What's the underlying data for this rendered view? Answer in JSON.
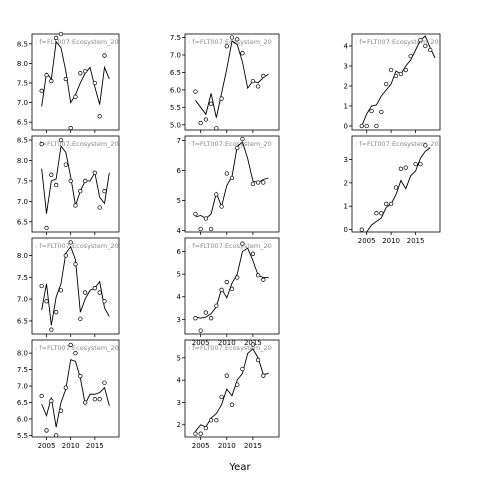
{
  "chart_data": {
    "type": "line",
    "xlabel": "Year",
    "ylabel": "",
    "xlim": [
      2002,
      2020
    ],
    "x_ticks": [
      2005,
      2010,
      2015
    ],
    "panel_label_text": ": f=FLT007:Ecosystem_20",
    "grid": false,
    "legend": "none",
    "panels": [
      {
        "id": "r1c1",
        "ylim": [
          6.3,
          8.75
        ],
        "y_ticks": [
          6.5,
          7.0,
          7.5,
          8.0,
          8.5
        ],
        "points": [
          [
            2004,
            7.3
          ],
          [
            2005,
            7.7
          ],
          [
            2006,
            7.55
          ],
          [
            2007,
            8.65
          ],
          [
            2008,
            8.75
          ],
          [
            2009,
            7.6
          ],
          [
            2010,
            6.35
          ],
          [
            2011,
            7.15
          ],
          [
            2012,
            7.75
          ],
          [
            2013,
            7.8
          ],
          [
            2015,
            7.5
          ],
          [
            2016,
            6.65
          ],
          [
            2017,
            8.2
          ]
        ],
        "fit": [
          [
            2004,
            6.9
          ],
          [
            2005,
            7.75
          ],
          [
            2006,
            7.6
          ],
          [
            2007,
            8.55
          ],
          [
            2008,
            8.4
          ],
          [
            2009,
            7.8
          ],
          [
            2010,
            7.0
          ],
          [
            2011,
            7.2
          ],
          [
            2012,
            7.5
          ],
          [
            2013,
            7.75
          ],
          [
            2014,
            7.9
          ],
          [
            2015,
            7.4
          ],
          [
            2016,
            6.95
          ],
          [
            2017,
            7.9
          ],
          [
            2018,
            7.6
          ]
        ]
      },
      {
        "id": "r1c2",
        "ylim": [
          4.85,
          7.6
        ],
        "y_ticks": [
          5.0,
          5.5,
          6.0,
          6.5,
          7.0,
          7.5
        ],
        "points": [
          [
            2004,
            5.95
          ],
          [
            2005,
            5.05
          ],
          [
            2006,
            5.15
          ],
          [
            2007,
            5.6
          ],
          [
            2008,
            4.9
          ],
          [
            2009,
            5.75
          ],
          [
            2010,
            7.25
          ],
          [
            2011,
            7.5
          ],
          [
            2012,
            7.45
          ],
          [
            2013,
            7.05
          ],
          [
            2015,
            6.25
          ],
          [
            2016,
            6.1
          ],
          [
            2017,
            6.4
          ]
        ],
        "fit": [
          [
            2004,
            5.7
          ],
          [
            2005,
            5.5
          ],
          [
            2006,
            5.3
          ],
          [
            2007,
            5.9
          ],
          [
            2008,
            5.2
          ],
          [
            2009,
            5.9
          ],
          [
            2010,
            6.6
          ],
          [
            2011,
            7.4
          ],
          [
            2012,
            7.3
          ],
          [
            2013,
            6.8
          ],
          [
            2014,
            6.05
          ],
          [
            2015,
            6.25
          ],
          [
            2016,
            6.2
          ],
          [
            2017,
            6.35
          ],
          [
            2018,
            6.45
          ]
        ]
      },
      {
        "id": "r1c3",
        "ylim": [
          -0.2,
          4.6
        ],
        "y_ticks": [
          0,
          1,
          2,
          3,
          4
        ],
        "points": [
          [
            2004,
            0.0
          ],
          [
            2005,
            0.0
          ],
          [
            2006,
            0.75
          ],
          [
            2007,
            0.0
          ],
          [
            2008,
            0.7
          ],
          [
            2009,
            2.1
          ],
          [
            2010,
            2.8
          ],
          [
            2011,
            2.5
          ],
          [
            2012,
            2.6
          ],
          [
            2013,
            2.8
          ],
          [
            2014,
            3.5
          ],
          [
            2016,
            4.3
          ],
          [
            2017,
            4.0
          ],
          [
            2018,
            3.8
          ]
        ],
        "fit": [
          [
            2004,
            0.0
          ],
          [
            2005,
            0.6
          ],
          [
            2006,
            1.0
          ],
          [
            2007,
            1.05
          ],
          [
            2008,
            1.5
          ],
          [
            2009,
            1.8
          ],
          [
            2010,
            2.1
          ],
          [
            2011,
            2.75
          ],
          [
            2012,
            2.6
          ],
          [
            2013,
            3.0
          ],
          [
            2014,
            3.3
          ],
          [
            2015,
            3.8
          ],
          [
            2016,
            4.3
          ],
          [
            2017,
            4.5
          ],
          [
            2018,
            3.9
          ],
          [
            2019,
            3.4
          ]
        ]
      },
      {
        "id": "r2c1",
        "ylim": [
          6.25,
          8.6
        ],
        "y_ticks": [
          6.5,
          7.0,
          7.5,
          8.0,
          8.5
        ],
        "points": [
          [
            2004,
            8.4
          ],
          [
            2005,
            6.35
          ],
          [
            2006,
            7.65
          ],
          [
            2007,
            7.4
          ],
          [
            2008,
            8.5
          ],
          [
            2009,
            7.9
          ],
          [
            2010,
            7.5
          ],
          [
            2011,
            6.9
          ],
          [
            2012,
            7.25
          ],
          [
            2013,
            7.5
          ],
          [
            2015,
            7.7
          ],
          [
            2016,
            6.85
          ],
          [
            2017,
            7.25
          ]
        ],
        "fit": [
          [
            2004,
            7.8
          ],
          [
            2005,
            6.7
          ],
          [
            2006,
            7.5
          ],
          [
            2007,
            7.55
          ],
          [
            2008,
            8.35
          ],
          [
            2009,
            8.2
          ],
          [
            2010,
            7.6
          ],
          [
            2011,
            6.9
          ],
          [
            2012,
            7.25
          ],
          [
            2013,
            7.5
          ],
          [
            2014,
            7.5
          ],
          [
            2015,
            7.7
          ],
          [
            2016,
            7.1
          ],
          [
            2017,
            6.95
          ],
          [
            2018,
            7.7
          ]
        ]
      },
      {
        "id": "r2c2",
        "ylim": [
          3.95,
          7.15
        ],
        "y_ticks": [
          4.0,
          5.0,
          6.0,
          7.0
        ],
        "points": [
          [
            2004,
            4.55
          ],
          [
            2005,
            4.05
          ],
          [
            2006,
            4.4
          ],
          [
            2007,
            4.05
          ],
          [
            2008,
            5.2
          ],
          [
            2009,
            4.8
          ],
          [
            2010,
            5.9
          ],
          [
            2011,
            5.75
          ],
          [
            2012,
            6.75
          ],
          [
            2013,
            7.05
          ],
          [
            2015,
            5.55
          ],
          [
            2016,
            5.6
          ],
          [
            2017,
            5.6
          ]
        ],
        "fit": [
          [
            2004,
            4.45
          ],
          [
            2005,
            4.5
          ],
          [
            2006,
            4.4
          ],
          [
            2007,
            4.55
          ],
          [
            2008,
            5.25
          ],
          [
            2009,
            4.8
          ],
          [
            2010,
            5.5
          ],
          [
            2011,
            5.8
          ],
          [
            2012,
            6.8
          ],
          [
            2013,
            6.95
          ],
          [
            2014,
            6.4
          ],
          [
            2015,
            5.65
          ],
          [
            2016,
            5.6
          ],
          [
            2017,
            5.7
          ],
          [
            2018,
            5.75
          ]
        ]
      },
      {
        "id": "r2c3",
        "ylim": [
          -0.1,
          4.0
        ],
        "y_ticks": [
          0,
          1,
          2,
          3
        ],
        "points": [
          [
            2004,
            0.0
          ],
          [
            2007,
            0.7
          ],
          [
            2008,
            0.7
          ],
          [
            2009,
            1.1
          ],
          [
            2010,
            1.1
          ],
          [
            2011,
            1.8
          ],
          [
            2012,
            2.6
          ],
          [
            2013,
            2.65
          ],
          [
            2015,
            2.8
          ],
          [
            2016,
            2.8
          ],
          [
            2017,
            3.6
          ]
        ],
        "fit": [
          [
            2004,
            -0.3
          ],
          [
            2005,
            -0.1
          ],
          [
            2006,
            0.2
          ],
          [
            2007,
            0.35
          ],
          [
            2008,
            0.5
          ],
          [
            2009,
            0.95
          ],
          [
            2010,
            1.1
          ],
          [
            2011,
            1.5
          ],
          [
            2012,
            2.1
          ],
          [
            2013,
            1.75
          ],
          [
            2014,
            2.3
          ],
          [
            2015,
            2.5
          ],
          [
            2016,
            3.05
          ],
          [
            2017,
            3.35
          ],
          [
            2018,
            3.5
          ]
        ]
      },
      {
        "id": "r3c1",
        "ylim": [
          6.2,
          8.4
        ],
        "y_ticks": [
          6.5,
          7.0,
          7.5,
          8.0
        ],
        "points": [
          [
            2004,
            7.3
          ],
          [
            2005,
            6.95
          ],
          [
            2006,
            6.3
          ],
          [
            2007,
            6.7
          ],
          [
            2008,
            7.2
          ],
          [
            2009,
            8.0
          ],
          [
            2010,
            8.3
          ],
          [
            2011,
            7.8
          ],
          [
            2012,
            6.55
          ],
          [
            2013,
            7.15
          ],
          [
            2015,
            7.25
          ],
          [
            2016,
            7.15
          ],
          [
            2017,
            6.95
          ]
        ],
        "fit": [
          [
            2004,
            6.75
          ],
          [
            2005,
            7.35
          ],
          [
            2006,
            6.4
          ],
          [
            2007,
            7.05
          ],
          [
            2008,
            7.35
          ],
          [
            2009,
            8.05
          ],
          [
            2010,
            8.2
          ],
          [
            2011,
            7.9
          ],
          [
            2012,
            6.7
          ],
          [
            2013,
            7.0
          ],
          [
            2014,
            7.2
          ],
          [
            2015,
            7.25
          ],
          [
            2016,
            7.4
          ],
          [
            2017,
            6.8
          ],
          [
            2018,
            6.6
          ]
        ]
      },
      {
        "id": "r3c2",
        "ylim": [
          2.35,
          6.6
        ],
        "y_ticks": [
          3,
          4,
          5,
          6
        ],
        "points": [
          [
            2004,
            3.05
          ],
          [
            2005,
            2.5
          ],
          [
            2006,
            3.3
          ],
          [
            2007,
            3.05
          ],
          [
            2008,
            3.6
          ],
          [
            2009,
            4.3
          ],
          [
            2010,
            4.65
          ],
          [
            2011,
            4.35
          ],
          [
            2012,
            4.85
          ],
          [
            2013,
            6.35
          ],
          [
            2015,
            5.9
          ],
          [
            2016,
            4.95
          ],
          [
            2017,
            4.75
          ]
        ],
        "fit": [
          [
            2004,
            3.1
          ],
          [
            2005,
            3.05
          ],
          [
            2006,
            3.1
          ],
          [
            2007,
            3.25
          ],
          [
            2008,
            3.55
          ],
          [
            2009,
            4.35
          ],
          [
            2010,
            3.95
          ],
          [
            2011,
            4.6
          ],
          [
            2012,
            5.0
          ],
          [
            2013,
            6.0
          ],
          [
            2014,
            6.15
          ],
          [
            2015,
            5.6
          ],
          [
            2016,
            4.95
          ],
          [
            2017,
            4.85
          ],
          [
            2018,
            4.85
          ]
        ]
      },
      {
        "id": "r4c1",
        "ylim": [
          5.45,
          8.4
        ],
        "y_ticks": [
          5.5,
          6.0,
          6.5,
          7.0,
          7.5,
          8.0
        ],
        "points": [
          [
            2004,
            6.7
          ],
          [
            2005,
            5.65
          ],
          [
            2006,
            6.55
          ],
          [
            2007,
            5.5
          ],
          [
            2008,
            6.25
          ],
          [
            2009,
            6.95
          ],
          [
            2010,
            8.25
          ],
          [
            2011,
            8.0
          ],
          [
            2012,
            7.3
          ],
          [
            2013,
            6.5
          ],
          [
            2015,
            6.6
          ],
          [
            2016,
            6.6
          ],
          [
            2017,
            7.1
          ]
        ],
        "fit": [
          [
            2004,
            6.45
          ],
          [
            2005,
            6.1
          ],
          [
            2006,
            6.65
          ],
          [
            2007,
            5.75
          ],
          [
            2008,
            6.5
          ],
          [
            2009,
            6.9
          ],
          [
            2010,
            7.8
          ],
          [
            2011,
            7.75
          ],
          [
            2012,
            7.25
          ],
          [
            2013,
            6.45
          ],
          [
            2014,
            6.75
          ],
          [
            2015,
            6.75
          ],
          [
            2016,
            6.8
          ],
          [
            2017,
            6.95
          ],
          [
            2018,
            6.4
          ]
        ]
      },
      {
        "id": "r4c2",
        "ylim": [
          1.45,
          5.8
        ],
        "y_ticks": [
          2,
          3,
          4,
          5
        ],
        "points": [
          [
            2004,
            1.6
          ],
          [
            2005,
            1.6
          ],
          [
            2006,
            1.85
          ],
          [
            2007,
            2.2
          ],
          [
            2008,
            2.2
          ],
          [
            2009,
            3.25
          ],
          [
            2010,
            4.2
          ],
          [
            2011,
            2.9
          ],
          [
            2012,
            3.8
          ],
          [
            2013,
            4.5
          ],
          [
            2015,
            5.6
          ],
          [
            2016,
            4.9
          ],
          [
            2017,
            4.2
          ]
        ],
        "fit": [
          [
            2004,
            1.7
          ],
          [
            2005,
            2.0
          ],
          [
            2006,
            1.9
          ],
          [
            2007,
            2.3
          ],
          [
            2008,
            2.5
          ],
          [
            2009,
            2.9
          ],
          [
            2010,
            3.6
          ],
          [
            2011,
            3.3
          ],
          [
            2012,
            4.0
          ],
          [
            2013,
            4.3
          ],
          [
            2014,
            5.2
          ],
          [
            2015,
            5.4
          ],
          [
            2016,
            5.0
          ],
          [
            2017,
            4.25
          ],
          [
            2018,
            4.3
          ]
        ]
      }
    ]
  }
}
